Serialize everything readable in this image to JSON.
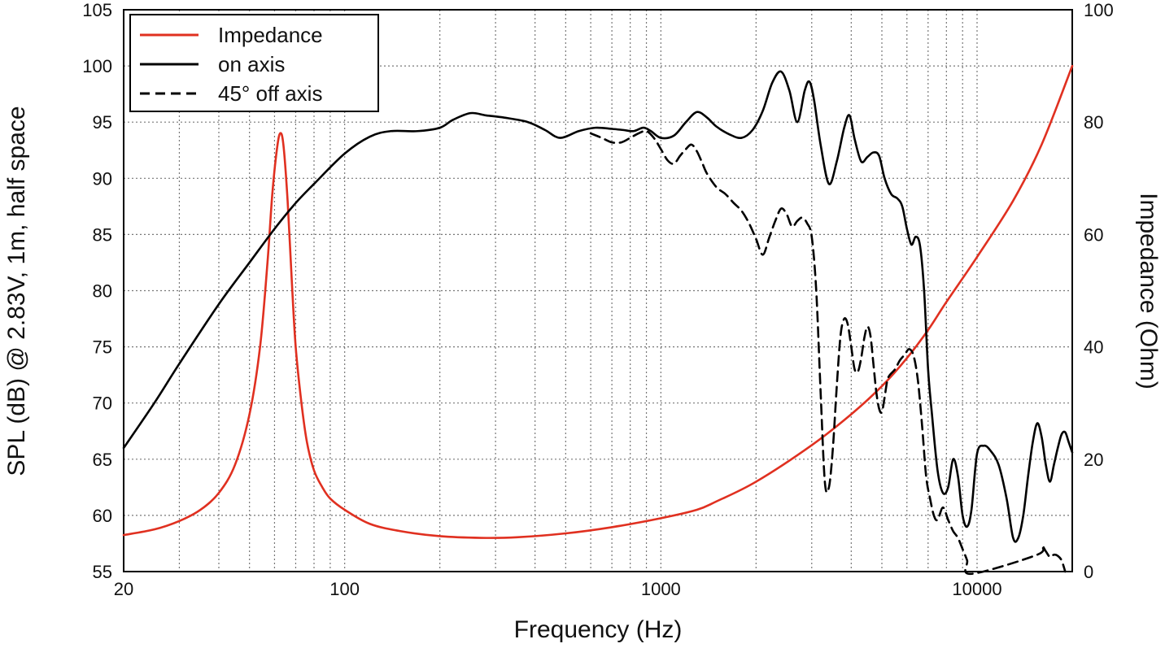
{
  "chart_data": {
    "type": "line",
    "xlabel": "Frequency (Hz)",
    "ylabel_left": "SPL (dB) @ 2.83V, 1m, half space",
    "ylabel_right": "Impedance (Ohm)",
    "x_scale": "log",
    "xlim": [
      20,
      20000
    ],
    "ylim_left": [
      55,
      105
    ],
    "ylim_right": [
      0,
      100
    ],
    "x_tick_labels": [
      "20",
      "100",
      "1000",
      "10000"
    ],
    "y_left_ticks": [
      "55",
      "60",
      "65",
      "70",
      "75",
      "80",
      "85",
      "90",
      "95",
      "100",
      "105"
    ],
    "y_right_ticks": [
      "0",
      "20",
      "40",
      "60",
      "80",
      "100"
    ],
    "grid": true,
    "legend_position": "top-left",
    "colors": {
      "impedance": "#e03020",
      "on_axis": "#000000",
      "off_axis": "#000000",
      "grid": "#777777"
    },
    "series": [
      {
        "name": "Impedance",
        "axis": "right",
        "style": "solid",
        "color": "#e03020",
        "x": [
          20,
          25,
          30,
          35,
          40,
          45,
          50,
          54,
          57,
          59,
          61,
          62.5,
          64,
          66,
          68,
          70,
          73,
          76,
          80,
          85,
          90,
          100,
          120,
          150,
          200,
          270,
          350,
          500,
          700,
          1000,
          1300,
          1500,
          2000,
          3000,
          4000,
          5000,
          6000,
          7000,
          8000,
          10000,
          13000,
          16000,
          20000
        ],
        "values": [
          6.5,
          7.5,
          9,
          11,
          14,
          19,
          28,
          40,
          55,
          67,
          75,
          78,
          76,
          66,
          52,
          40,
          30,
          23,
          18,
          15,
          13,
          11,
          8.5,
          7.2,
          6.3,
          6,
          6.1,
          6.8,
          7.9,
          9.5,
          11,
          12.5,
          16,
          22.5,
          28,
          33,
          38,
          43,
          48,
          56,
          66,
          76,
          90
        ]
      },
      {
        "name": "on axis",
        "axis": "left",
        "style": "solid",
        "color": "#000000",
        "x": [
          20,
          25,
          30,
          40,
          50,
          60,
          70,
          80,
          100,
          120,
          140,
          170,
          200,
          220,
          250,
          280,
          320,
          380,
          430,
          480,
          550,
          620,
          700,
          760,
          820,
          880,
          930,
          1000,
          1100,
          1200,
          1300,
          1400,
          1500,
          1650,
          1800,
          1950,
          2100,
          2250,
          2400,
          2550,
          2700,
          2850,
          2950,
          3050,
          3200,
          3400,
          3600,
          3800,
          3950,
          4100,
          4300,
          4500,
          4700,
          4900,
          5100,
          5350,
          5600,
          5800,
          6000,
          6200,
          6400,
          6600,
          6800,
          7000,
          7200,
          7500,
          7800,
          8100,
          8400,
          8700,
          9000,
          9300,
          9600,
          10000,
          10500,
          11000,
          11700,
          12400,
          13000,
          13500,
          14000,
          14500,
          15000,
          15500,
          16000,
          16500,
          17000,
          17500,
          18000,
          18500,
          19000,
          19500,
          20000
        ],
        "values": [
          66,
          70,
          73.5,
          78.8,
          82.5,
          85.5,
          87.8,
          89.5,
          92.2,
          93.7,
          94.2,
          94.2,
          94.5,
          95.2,
          95.8,
          95.6,
          95.4,
          95,
          94.3,
          93.6,
          94.2,
          94.5,
          94.4,
          94.3,
          94.2,
          94.5,
          94.2,
          93.6,
          93.8,
          95,
          95.9,
          95.4,
          94.6,
          93.9,
          93.6,
          94.3,
          96,
          98.5,
          99.5,
          97.8,
          95,
          97.8,
          98.6,
          97,
          93,
          89.5,
          91.5,
          94.5,
          95.6,
          93.5,
          91.5,
          91.9,
          92.3,
          92,
          90,
          88.6,
          88.2,
          87.5,
          85.5,
          84.1,
          84.8,
          84,
          80,
          73,
          69,
          64,
          62,
          62.5,
          65,
          63.5,
          60,
          59,
          60.5,
          65.5,
          66.2,
          65.8,
          64.5,
          61.5,
          58,
          58,
          60,
          63.5,
          66.5,
          68.2,
          67,
          64.5,
          63,
          64.5,
          66,
          67.2,
          67.4,
          66.5,
          65.6
        ]
      },
      {
        "name": "45° off axis",
        "axis": "left",
        "style": "dashed",
        "color": "#000000",
        "x": [
          600,
          650,
          700,
          750,
          800,
          850,
          900,
          950,
          1000,
          1050,
          1100,
          1150,
          1200,
          1250,
          1300,
          1350,
          1400,
          1500,
          1600,
          1700,
          1800,
          1900,
          2000,
          2100,
          2200,
          2300,
          2400,
          2500,
          2600,
          2700,
          2800,
          2900,
          3000,
          3100,
          3200,
          3300,
          3400,
          3500,
          3600,
          3700,
          3800,
          3900,
          4000,
          4100,
          4200,
          4300,
          4400,
          4500,
          4600,
          4700,
          4800,
          4900,
          5000,
          5100,
          5200,
          5300,
          5500,
          5700,
          5900,
          6100,
          6300,
          6500,
          6700,
          6900,
          7100,
          7300,
          7500,
          7800,
          8100,
          8400,
          8700,
          9000,
          9300,
          9600,
          15500,
          16000,
          16500,
          17000,
          17500,
          18000,
          18500,
          19000
        ],
        "values": [
          94,
          93.6,
          93.2,
          93.2,
          93.6,
          94,
          94.2,
          93.6,
          92.6,
          91.6,
          91.3,
          92,
          92.6,
          93,
          92.4,
          91.4,
          90.4,
          89.2,
          88.6,
          87.8,
          87.1,
          86,
          84.6,
          83.2,
          84.7,
          86.2,
          87.3,
          86.8,
          85.7,
          86.2,
          86.5,
          86,
          84.8,
          80,
          71,
          63,
          62.5,
          66,
          71.5,
          76,
          77.5,
          77,
          75,
          73,
          72.8,
          74,
          75.8,
          76.8,
          76,
          73.5,
          71,
          69.5,
          69.2,
          70.5,
          72,
          72.5,
          73,
          73.8,
          74.3,
          74.8,
          74.2,
          72,
          68,
          63.5,
          61.5,
          60,
          59.6,
          60.7,
          59.6,
          58.6,
          58,
          57,
          56,
          54.8,
          56.5,
          57.3,
          56.8,
          56.3,
          56.5,
          56.4,
          56,
          55
        ]
      }
    ]
  }
}
